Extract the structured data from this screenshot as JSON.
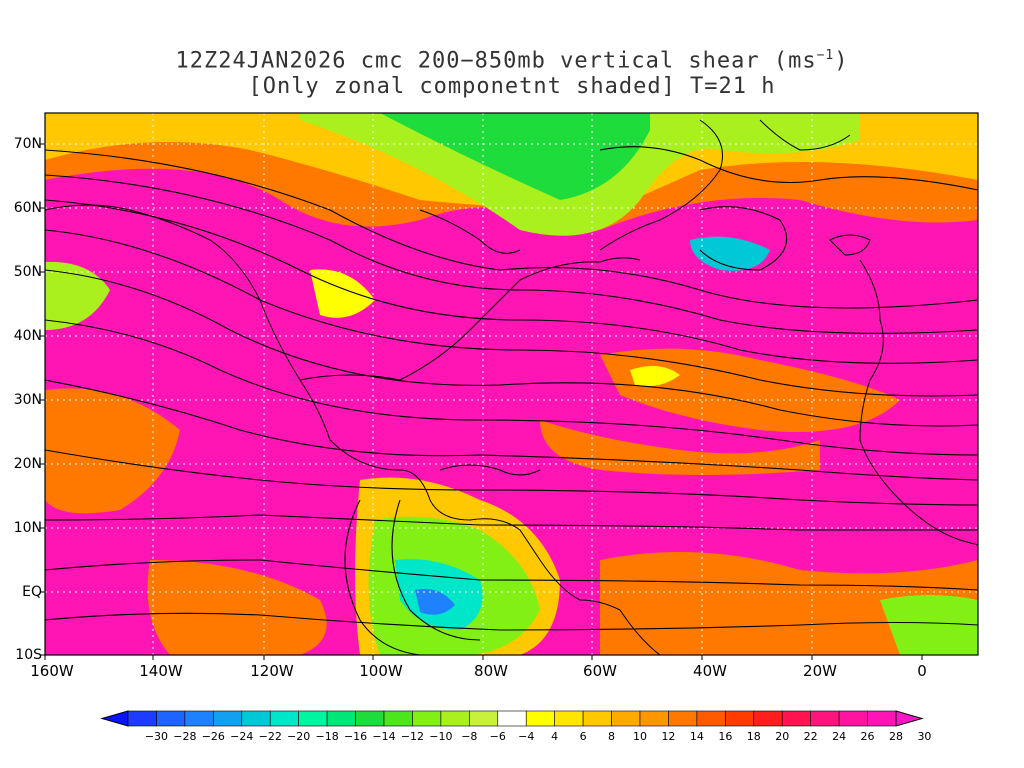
{
  "title": {
    "line1_main": "12Z24JAN2026 cmc 200−850mb vertical shear (ms",
    "line1_sup": "−1",
    "line1_end": ")",
    "line2": "[Only zonal componetnt shaded] T=21 h"
  },
  "map": {
    "lat_labels": [
      "70N",
      "60N",
      "50N",
      "40N",
      "30N",
      "20N",
      "10N",
      "EQ",
      "10S"
    ],
    "lon_labels": [
      "160W",
      "140W",
      "120W",
      "100W",
      "80W",
      "60W",
      "40W",
      "20W",
      "0"
    ]
  },
  "colorbar": {
    "labels": [
      "−30",
      "−28",
      "−26",
      "−24",
      "−22",
      "−20",
      "−18",
      "−16",
      "−14",
      "−12",
      "−10",
      "−8",
      "−6",
      "−4",
      "4",
      "6",
      "8",
      "10",
      "12",
      "14",
      "16",
      "18",
      "20",
      "22",
      "24",
      "26",
      "28",
      "30"
    ],
    "colors": [
      "#1e3cff",
      "#1e64ff",
      "#1e82ff",
      "#14a0f0",
      "#00c8d7",
      "#00e6c8",
      "#00f5a0",
      "#00e678",
      "#1edc3c",
      "#4be61e",
      "#82f014",
      "#aaf01e",
      "#c8f03c",
      "#ffffff",
      "#ffff00",
      "#ffe600",
      "#ffc800",
      "#ffaa00",
      "#ff9600",
      "#ff7800",
      "#ff5a00",
      "#ff3c00",
      "#ff1e1e",
      "#ff1450",
      "#ff147d",
      "#ff14a0",
      "#ff14b4"
    ]
  }
}
